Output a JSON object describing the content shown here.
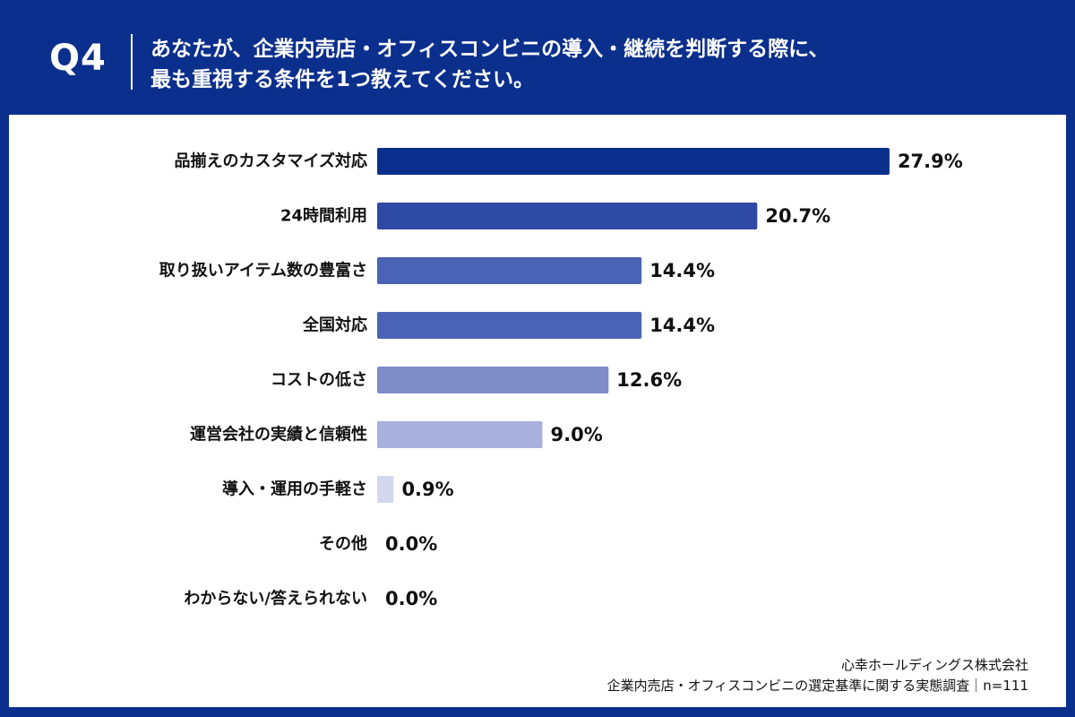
{
  "header": {
    "question_label": "Q4",
    "question_line1": "あなたが、企業内売店・オフィスコンビニの導入・継続を判断する際に、",
    "question_line2": "最も重視する条件を1つ教えてください。"
  },
  "footer": {
    "company": "心幸ホールディングス株式会社",
    "survey": "企業内売店・オフィスコンビニの選定基準に関する実態調査｜n=111"
  },
  "colors": {
    "header_bg": "#0b2f8c",
    "bars": [
      "#0b2f8c",
      "#2f4aa4",
      "#4a63b4",
      "#4a63b4",
      "#7f8cc8",
      "#a8b0dd",
      "#d3d8ef",
      "#e6e9f5",
      "#e6e9f5"
    ]
  },
  "chart_data": {
    "type": "bar",
    "orientation": "horizontal",
    "categories": [
      "品揃えのカスタマイズ対応",
      "24時間利用",
      "取り扱いアイテム数の豊富さ",
      "全国対応",
      "コストの低さ",
      "運営会社の実績と信頼性",
      "導入・運用の手軽さ",
      "その他",
      "わからない/答えられない"
    ],
    "values": [
      27.9,
      20.7,
      14.4,
      14.4,
      12.6,
      9.0,
      0.9,
      0.0,
      0.0
    ],
    "value_labels": [
      "27.9%",
      "20.7%",
      "14.4%",
      "14.4%",
      "12.6%",
      "9.0%",
      "0.9%",
      "0.0%",
      "0.0%"
    ],
    "unit": "%"
  }
}
